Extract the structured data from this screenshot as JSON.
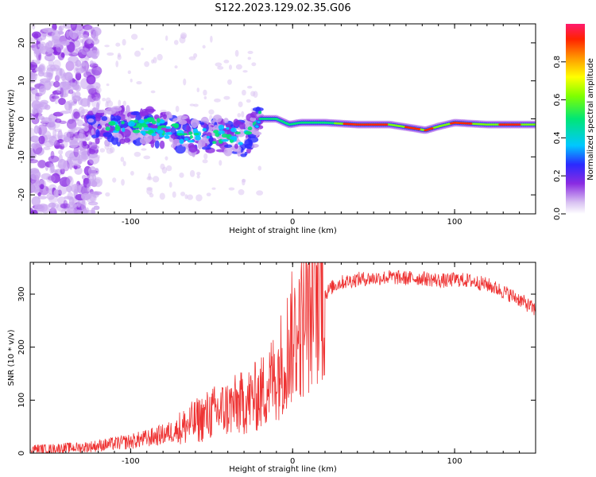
{
  "title": "S122.2023.129.02.35.G06",
  "chart_data": [
    {
      "type": "heatmap",
      "xlabel": "Height of straight line (km)",
      "ylabel": "Frequency (Hz)",
      "xlim": [
        -162,
        150
      ],
      "ylim": [
        -25,
        25
      ],
      "xticks": [
        -100,
        0,
        100
      ],
      "yticks": [
        -20,
        -10,
        0,
        10,
        20
      ],
      "colorbar": {
        "label": "Normalized spectral amplitude",
        "range": [
          0,
          1
        ],
        "ticks": [
          0.0,
          0.2,
          0.4,
          0.6,
          0.8
        ]
      },
      "ridge": [
        {
          "x": -120,
          "y": -2.0
        },
        {
          "x": -100,
          "y": -1.5
        },
        {
          "x": -80,
          "y": -2.5
        },
        {
          "x": -60,
          "y": -5.0
        },
        {
          "x": -45,
          "y": -4.0
        },
        {
          "x": -30,
          "y": -5.5
        },
        {
          "x": -22,
          "y": -2.0
        },
        {
          "x": -20,
          "y": 0.0
        },
        {
          "x": -10,
          "y": 0.0
        },
        {
          "x": -2,
          "y": -1.5
        },
        {
          "x": 5,
          "y": -1.0
        },
        {
          "x": 20,
          "y": -1.0
        },
        {
          "x": 40,
          "y": -1.5
        },
        {
          "x": 60,
          "y": -1.5
        },
        {
          "x": 75,
          "y": -2.5
        },
        {
          "x": 82,
          "y": -3.0
        },
        {
          "x": 90,
          "y": -2.0
        },
        {
          "x": 100,
          "y": -1.0
        },
        {
          "x": 120,
          "y": -1.5
        },
        {
          "x": 150,
          "y": -1.5
        }
      ]
    },
    {
      "type": "line",
      "xlabel": "Height of straight line (km)",
      "ylabel": "SNR (10 * v/v)",
      "xlim": [
        -162,
        150
      ],
      "ylim": [
        0,
        360
      ],
      "xticks": [
        -100,
        0,
        100
      ],
      "yticks": [
        0,
        100,
        200,
        300
      ],
      "color": "#ee3333",
      "series": [
        {
          "x": [
            -162,
            -150,
            -140,
            -130,
            -120,
            -110,
            -100,
            -90,
            -80,
            -70,
            -60,
            -50,
            -40,
            -30,
            -20,
            -15,
            -10,
            -5,
            0,
            5,
            10,
            15,
            18,
            20,
            25,
            30,
            40,
            50,
            60,
            70,
            80,
            90,
            95,
            100,
            110,
            120,
            130,
            140,
            150
          ],
          "y": [
            8,
            8,
            10,
            11,
            14,
            18,
            22,
            28,
            35,
            45,
            60,
            75,
            85,
            95,
            110,
            130,
            150,
            185,
            220,
            235,
            260,
            290,
            305,
            300,
            315,
            322,
            328,
            330,
            332,
            330,
            330,
            326,
            325,
            328,
            325,
            318,
            305,
            290,
            270
          ]
        }
      ]
    }
  ]
}
